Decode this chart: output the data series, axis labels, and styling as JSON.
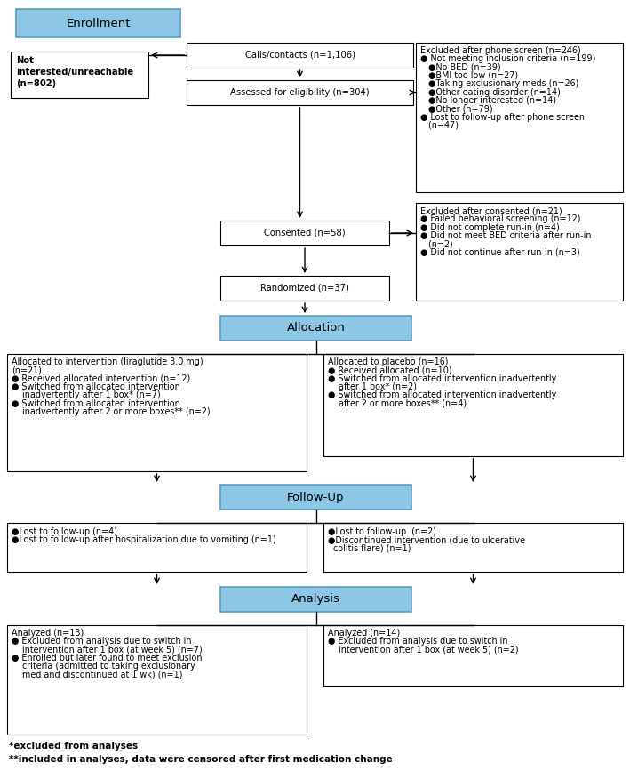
{
  "bg_color": "#ffffff",
  "header_fill": "#8ec6e6",
  "header_edge": "#5a9ec0",
  "box_fill": "#ffffff",
  "box_edge": "#000000",
  "font_size": 7.2,
  "header_font_size": 9.5,
  "footnote_font_size": 7.5,
  "bullet": "●",
  "small_bullet": "●",
  "enrollment_label": "Enrollment",
  "allocation_label": "Allocation",
  "followup_label": "Follow-Up",
  "analysis_label": "Analysis",
  "calls_text": "Calls/contacts (n=1,106)",
  "elig_text": "Assessed for eligibility (n=304)",
  "not_int_text": "Not\ninterested/unreachable\n(n=802)",
  "consented_text": "Consented (n=58)",
  "randomized_text": "Randomized (n=37)",
  "excl_phone_lines": [
    "Excluded after phone screen (n=246)",
    "● Not meeting inclusion criteria (n=199)",
    "   ●No BED (n=39)",
    "   ●BMI too low (n=27)",
    "   ●Taking exclusionary meds (n=26)",
    "   ●Other eating disorder (n=14)",
    "   ●No longer interested (n=14)",
    "   ●Other (n=79)",
    "● Lost to follow-up after phone screen",
    "   (n=47)"
  ],
  "excl_cons_lines": [
    "Excluded after consented (n=21)",
    "● Failed behavioral screening (n=12)",
    "● Did not complete run-in (n=4)",
    "● Did not meet BED criteria after run-in",
    "   (n=2)",
    "● Did not continue after run-in (n=3)"
  ],
  "left_alloc_lines": [
    "Allocated to intervention (liraglutide 3.0 mg)",
    "(n=21)",
    "● Received allocated intervention (n=12)",
    "● Switched from allocated intervention",
    "    inadvertently after 1 box* (n=7)",
    "● Switched from allocated intervention",
    "    inadvertently after 2 or more boxes** (n=2)"
  ],
  "right_alloc_lines": [
    "Allocated to placebo (n=16)",
    "● Received allocated (n=10)",
    "● Switched from allocated intervention inadvertently",
    "    after 1 box* (n=2)",
    "● Switched from allocated intervention inadvertently",
    "    after 2 or more boxes** (n=4)"
  ],
  "left_fu_lines": [
    "●Lost to follow-up (n=4)",
    "●Lost to follow-up after hospitalization due to vomiting (n=1)"
  ],
  "right_fu_lines": [
    "●Lost to follow-up  (n=2)",
    "●Discontinued intervention (due to ulcerative",
    "  colitis flare) (n=1)"
  ],
  "left_an_lines": [
    "Analyzed (n=13)",
    "● Excluded from analysis due to switch in",
    "    intervention after 1 box (at week 5) (n=7)",
    "● Enrolled but later found to meet exclusion",
    "    criteria (admitted to taking exclusionary",
    "    med and discontinued at 1 wk) (n=1)"
  ],
  "right_an_lines": [
    "Analyzed (n=14)",
    "● Excluded from analysis due to switch in",
    "    intervention after 1 box (at week 5) (n=2)"
  ],
  "footnotes": [
    "*excluded from analyses",
    "**included in analyses, data were censored after first medication change"
  ]
}
